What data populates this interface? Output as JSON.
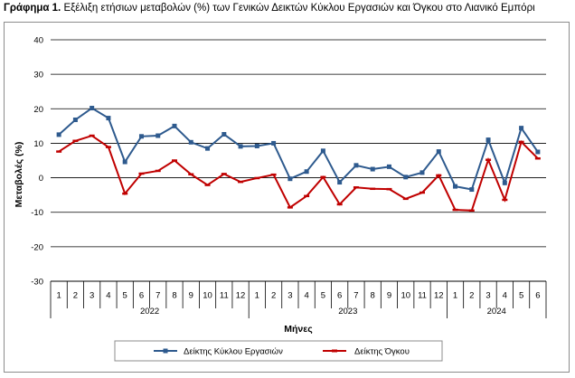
{
  "title": {
    "prefix": "Γράφημα 1.",
    "text": "Εξέλιξη ετήσιων μεταβολών (%) των Γενικών Δεικτών Κύκλου Εργασιών και Όγκου στο Λιανικό Εμπόρι"
  },
  "chart_data": {
    "type": "line",
    "ylabel": "Μεταβολές (%)",
    "xlabel": "Μήνες",
    "ylim": [
      -30,
      40
    ],
    "yticks": [
      -30,
      -20,
      -10,
      0,
      10,
      20,
      30,
      40
    ],
    "grid": true,
    "legend": "bottom",
    "years": [
      {
        "label": "2022",
        "months": [
          "1",
          "2",
          "3",
          "4",
          "5",
          "6",
          "7",
          "8",
          "9",
          "10",
          "11",
          "12"
        ]
      },
      {
        "label": "2023",
        "months": [
          "1",
          "2",
          "3",
          "4",
          "5",
          "6",
          "7",
          "8",
          "9",
          "10",
          "11",
          "12"
        ]
      },
      {
        "label": "2024",
        "months": [
          "1",
          "2",
          "3",
          "4",
          "5",
          "6"
        ]
      }
    ],
    "series": [
      {
        "name": "Δείκτης Κύκλου Εργασιών",
        "color": "#2e5a8e",
        "marker": "square",
        "values": [
          12.5,
          16.8,
          20.2,
          17.3,
          4.6,
          12.0,
          12.2,
          15.0,
          10.3,
          8.5,
          12.6,
          9.1,
          9.2,
          10.0,
          -0.3,
          1.8,
          7.8,
          -1.3,
          3.6,
          2.5,
          3.2,
          0.2,
          1.5,
          7.6,
          -2.5,
          -3.4,
          11.0,
          -1.5,
          14.4,
          7.5
        ]
      },
      {
        "name": "Δείκτης Όγκου",
        "color": "#c00000",
        "marker": "dash",
        "values": [
          7.6,
          10.7,
          12.2,
          8.9,
          -4.6,
          1.2,
          2.0,
          5.0,
          1.0,
          -2.1,
          1.1,
          -1.2,
          -0.1,
          0.9,
          -8.6,
          -5.3,
          0.2,
          -7.7,
          -2.8,
          -3.2,
          -3.3,
          -6.1,
          -4.3,
          0.7,
          -9.3,
          -9.5,
          5.2,
          -6.4,
          10.4,
          5.6
        ]
      }
    ]
  }
}
